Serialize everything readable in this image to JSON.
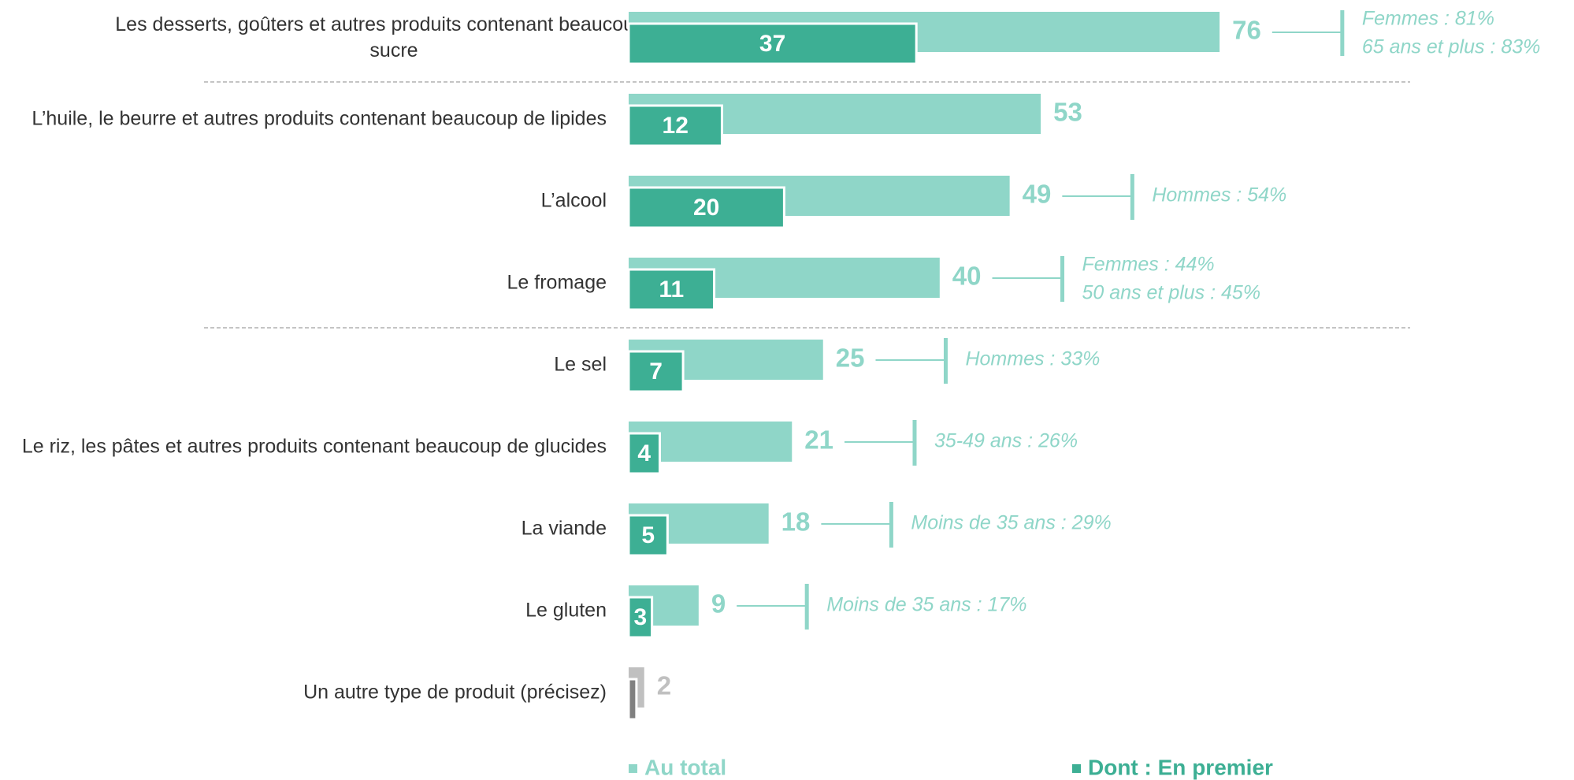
{
  "chart_data": {
    "type": "bar",
    "orientation": "horizontal",
    "categories": [
      "Les desserts, goûters et autres produits contenant beaucoup de sucre",
      "L’huile, le beurre et autres produits contenant beaucoup de lipides",
      "L’alcool",
      "Le fromage",
      "Le sel",
      "Le riz, les pâtes et autres produits contenant beaucoup de glucides",
      "La viande",
      "Le gluten",
      "Un autre type de produit (précisez)"
    ],
    "series": [
      {
        "name": "Au total",
        "color": "#8fd6c8",
        "colors": [
          "#8fd6c8",
          "#8fd6c8",
          "#8fd6c8",
          "#8fd6c8",
          "#8fd6c8",
          "#8fd6c8",
          "#8fd6c8",
          "#8fd6c8",
          "#c0c0c0"
        ],
        "values": [
          76,
          53,
          49,
          40,
          25,
          21,
          18,
          9,
          2
        ]
      },
      {
        "name": "Dont : En premier",
        "color": "#3daf94",
        "colors": [
          "#3daf94",
          "#3daf94",
          "#3daf94",
          "#3daf94",
          "#3daf94",
          "#3daf94",
          "#3daf94",
          "#3daf94",
          "#808080"
        ],
        "values": [
          37,
          12,
          20,
          11,
          7,
          4,
          5,
          3,
          1
        ]
      }
    ],
    "annotations": [
      [
        "Femmes : 81%",
        "65 ans et plus : 83%"
      ],
      null,
      [
        "Hommes : 54%"
      ],
      [
        "Femmes : 44%",
        "50 ans et plus : 45%"
      ],
      [
        "Hommes : 33%"
      ],
      [
        "35-49 ans : 26%"
      ],
      [
        "Moins de 35 ans : 29%"
      ],
      [
        "Moins de 35 ans : 17%"
      ],
      null
    ],
    "separators_before": [
      1,
      4
    ]
  }
}
